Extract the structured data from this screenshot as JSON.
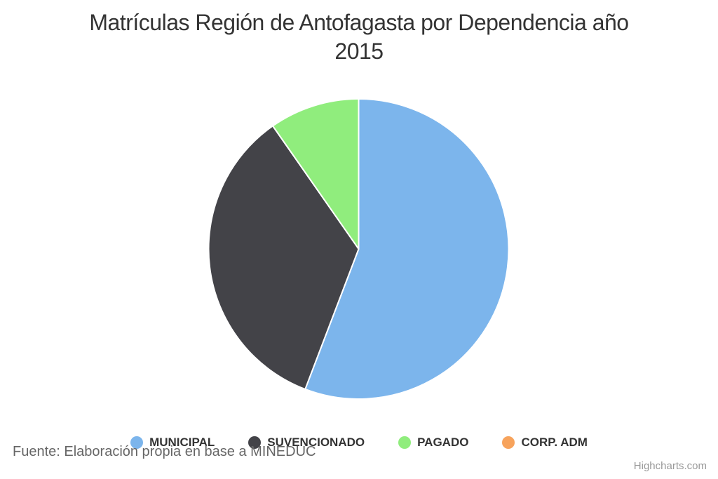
{
  "title": {
    "line1": "Matrículas Región de Antofagasta por Dependencia año",
    "line2": "2015"
  },
  "source_note": "Fuente: Elaboración propia en base a MINEDUC",
  "credit": "Highcharts.com",
  "chart_data": {
    "type": "pie",
    "title": "Matrículas Región de Antofagasta por Dependencia año 2015",
    "series": [
      {
        "name": "MUNICIPAL",
        "value": 55.8,
        "color": "#7cb5ec"
      },
      {
        "name": "SUVENCIONADO",
        "value": 34.5,
        "color": "#434348"
      },
      {
        "name": "PAGADO",
        "value": 9.7,
        "color": "#90ed7d"
      },
      {
        "name": "CORP. ADM",
        "value": 0.0,
        "color": "#f7a35c"
      }
    ],
    "unit": "percent-of-total (estimated from slice angles, no data labels shown)",
    "start_angle_deg": 0,
    "direction": "clockwise",
    "slice_border_color": "#ffffff",
    "legend_position": "bottom",
    "legend_marker": "circle",
    "source_note": "Fuente: Elaboración propia en base a MINEDUC",
    "credit": "Highcharts.com",
    "title_color": "#333333",
    "source_note_color": "#666666",
    "credit_color": "#999999",
    "background_color": "#ffffff"
  }
}
